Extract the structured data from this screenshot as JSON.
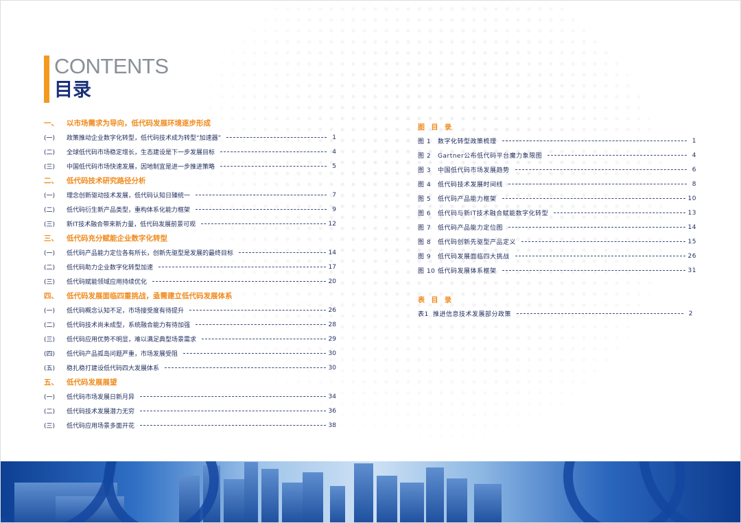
{
  "header": {
    "en_title": "CONTENTS",
    "cn_title": "目录"
  },
  "colors": {
    "accent": "#f39a1e",
    "section": "#f08a1c",
    "text": "#1d2a5c",
    "title_cn": "#1a2f7a",
    "title_en": "#8a8f98"
  },
  "toc": [
    {
      "num": "一、",
      "title": "以市场需求为导向，低代码发展环境逐步形成",
      "items": [
        {
          "num": "(一)",
          "title": "政策推动企业数字化转型，低代码技术成为转型“加速器”",
          "page": "1"
        },
        {
          "num": "(二)",
          "title": "全球低代码市场稳定增长，生态建设是下一步发展目标",
          "page": "4"
        },
        {
          "num": "(三)",
          "title": "中国低代码市场快速发展，因地制宜是进一步推进策略",
          "page": "5"
        }
      ]
    },
    {
      "num": "二、",
      "title": "低代码技术研究路径分析",
      "items": [
        {
          "num": "(一)",
          "title": "理念创新驱动技术发展，低代码认知日臻统一",
          "page": "7"
        },
        {
          "num": "(二)",
          "title": "低代码衍生新产品类型，重构体系化能力框架",
          "page": "9"
        },
        {
          "num": "(三)",
          "title": "新IT技术融合带来新力量，低代码发展前景可观",
          "page": "12"
        }
      ]
    },
    {
      "num": "三、",
      "title": "低代码充分赋能企业数字化转型",
      "items": [
        {
          "num": "(一)",
          "title": "低代码产品能力定位各有所长，创新先驱型是发展的最终目标",
          "page": "14"
        },
        {
          "num": "(二)",
          "title": "低代码助力企业数字化转型加速",
          "page": "17"
        },
        {
          "num": "(三)",
          "title": "低代码赋能领域应用持续优化",
          "page": "20"
        }
      ]
    },
    {
      "num": "四、",
      "title": "低代码发展面临四重挑战，亟需建立低代码发展体系",
      "items": [
        {
          "num": "(一)",
          "title": "低代码概念认知不足，市场接受度有待提升",
          "page": "26"
        },
        {
          "num": "(二)",
          "title": "低代码技术尚未成型，系统融合能力有待加强",
          "page": "28"
        },
        {
          "num": "(三)",
          "title": "低代码应用优势不明显，难以满足典型场景需求",
          "page": "29"
        },
        {
          "num": "(四)",
          "title": "低代码产品孤岛问题严重，市场发展受阻",
          "page": "30"
        },
        {
          "num": "(五)",
          "title": "稳扎稳打建设低代码四大发展体系",
          "page": "30"
        }
      ]
    },
    {
      "num": "五、",
      "title": "低代码发展展望",
      "items": [
        {
          "num": "(一)",
          "title": "低代码市场发展日新月异",
          "page": "34"
        },
        {
          "num": "(二)",
          "title": "低代码技术发展潜力无穷",
          "page": "36"
        },
        {
          "num": "(三)",
          "title": "低代码应用场景多面开花",
          "page": "38"
        }
      ]
    }
  ],
  "figures": {
    "heading": "图 目 录",
    "items": [
      {
        "num": "图 1",
        "title": "数字化转型政策梳理",
        "page": "1"
      },
      {
        "num": "图 2",
        "title": "Gartner公布低代码平台魔力象限图",
        "page": "4"
      },
      {
        "num": "图 3",
        "title": "中国低代码市场发展趋势",
        "page": "6"
      },
      {
        "num": "图 4",
        "title": "低代码技术发展时间线",
        "page": "8"
      },
      {
        "num": "图 5",
        "title": "低代码产品能力框架",
        "page": "10"
      },
      {
        "num": "图 6",
        "title": "低代码与新IT技术融合赋能数字化转型",
        "page": "13"
      },
      {
        "num": "图 7",
        "title": "低代码产品能力定位图",
        "page": "14"
      },
      {
        "num": "图 8",
        "title": "低代码创新先驱型产品定义",
        "page": "15"
      },
      {
        "num": "图 9",
        "title": "低代码发展面临四大挑战",
        "page": "26"
      },
      {
        "num": "图 10",
        "title": "低代码发展体系框架",
        "page": "31"
      }
    ]
  },
  "tables": {
    "heading": "表 目 录",
    "items": [
      {
        "num": "表1",
        "title": "推进信息技术发展部分政策",
        "page": "2"
      }
    ]
  }
}
